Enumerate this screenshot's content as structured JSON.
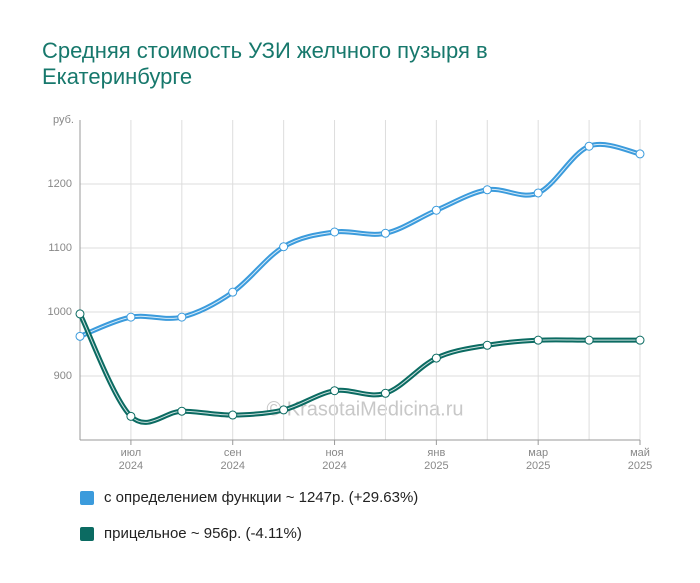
{
  "chart_data": {
    "type": "line",
    "title": [
      "Средняя стоимость УЗИ желчного пузыря в",
      "Екатеринбурге"
    ],
    "y_label": "руб.",
    "watermark": "© KrasotaiMedicina.ru",
    "categories": [
      null,
      "июл",
      null,
      "сен",
      null,
      "ноя",
      null,
      "янв",
      null,
      "мар",
      null,
      "май"
    ],
    "category_years": [
      null,
      "2024",
      null,
      "2024",
      null,
      "2024",
      null,
      "2025",
      null,
      "2025",
      null,
      "2025"
    ],
    "ylim": [
      800,
      1300
    ],
    "yticks": [
      900,
      1000,
      1100,
      1200
    ],
    "grid": true,
    "series": [
      {
        "name": "с определением функции ~ 1247р. (+29.63%)",
        "color": "#3b9bdc",
        "values": [
          962,
          992,
          992,
          1031,
          1102,
          1125,
          1123,
          1159,
          1191,
          1186,
          1259,
          1247
        ]
      },
      {
        "name": "прицельное ~ 956р. (-4.11%)",
        "color": "#0b6b62",
        "values": [
          997,
          837,
          845,
          839,
          847,
          877,
          873,
          928,
          948,
          956,
          956,
          956
        ]
      }
    ]
  }
}
